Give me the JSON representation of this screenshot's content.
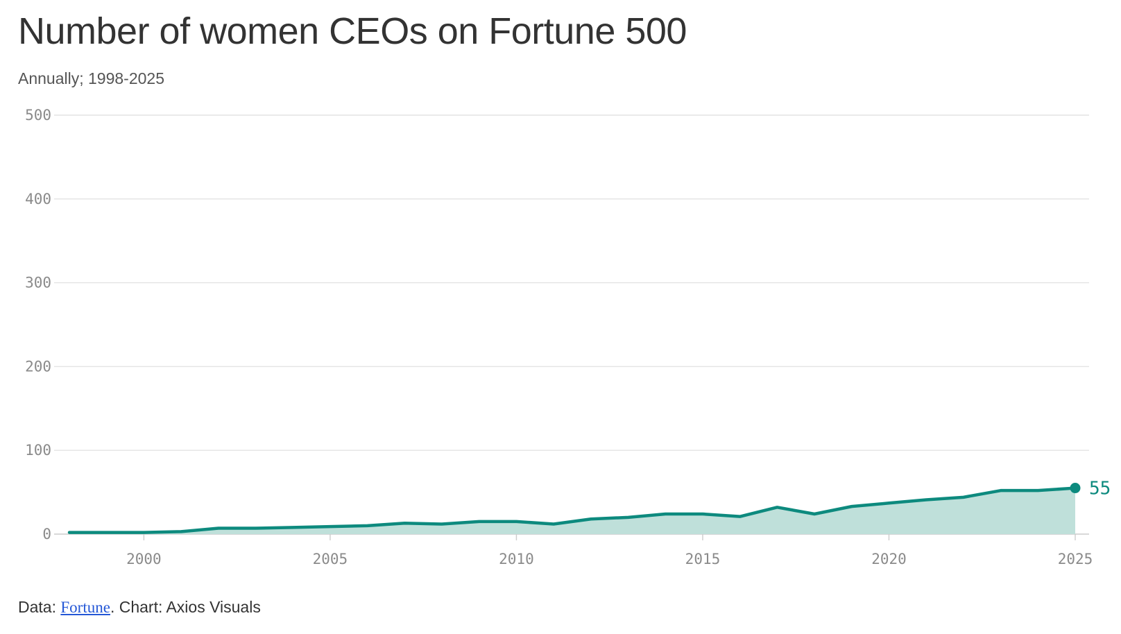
{
  "chart_data": {
    "type": "area",
    "title": "Number of women CEOs on Fortune 500",
    "subtitle": "Annually; 1998-2025",
    "x": [
      1998,
      1999,
      2000,
      2001,
      2002,
      2003,
      2004,
      2005,
      2006,
      2007,
      2008,
      2009,
      2010,
      2011,
      2012,
      2013,
      2014,
      2015,
      2016,
      2017,
      2018,
      2019,
      2020,
      2021,
      2022,
      2023,
      2024,
      2025
    ],
    "series": [
      {
        "name": "Women CEOs",
        "values": [
          2,
          2,
          2,
          3,
          7,
          7,
          8,
          9,
          10,
          13,
          12,
          15,
          15,
          12,
          18,
          20,
          24,
          24,
          21,
          32,
          24,
          33,
          37,
          41,
          44,
          52,
          52,
          55
        ]
      }
    ],
    "xlim": [
      1998,
      2025
    ],
    "ylim": [
      0,
      500
    ],
    "y_ticks": [
      "0",
      "100",
      "200",
      "300",
      "400",
      "500"
    ],
    "x_ticks": [
      "2000",
      "2005",
      "2010",
      "2015",
      "2020",
      "2025"
    ],
    "end_label": "55",
    "grid": true,
    "xlabel": "",
    "ylabel": ""
  },
  "footer": {
    "prefix": "Data: ",
    "source_link": "Fortune",
    "suffix": ". Chart: Axios Visuals"
  },
  "colors": {
    "line": "#0d8a7e",
    "fill": "#bfe0da",
    "grid": "#e3e3e3",
    "axis": "#cccccc"
  }
}
